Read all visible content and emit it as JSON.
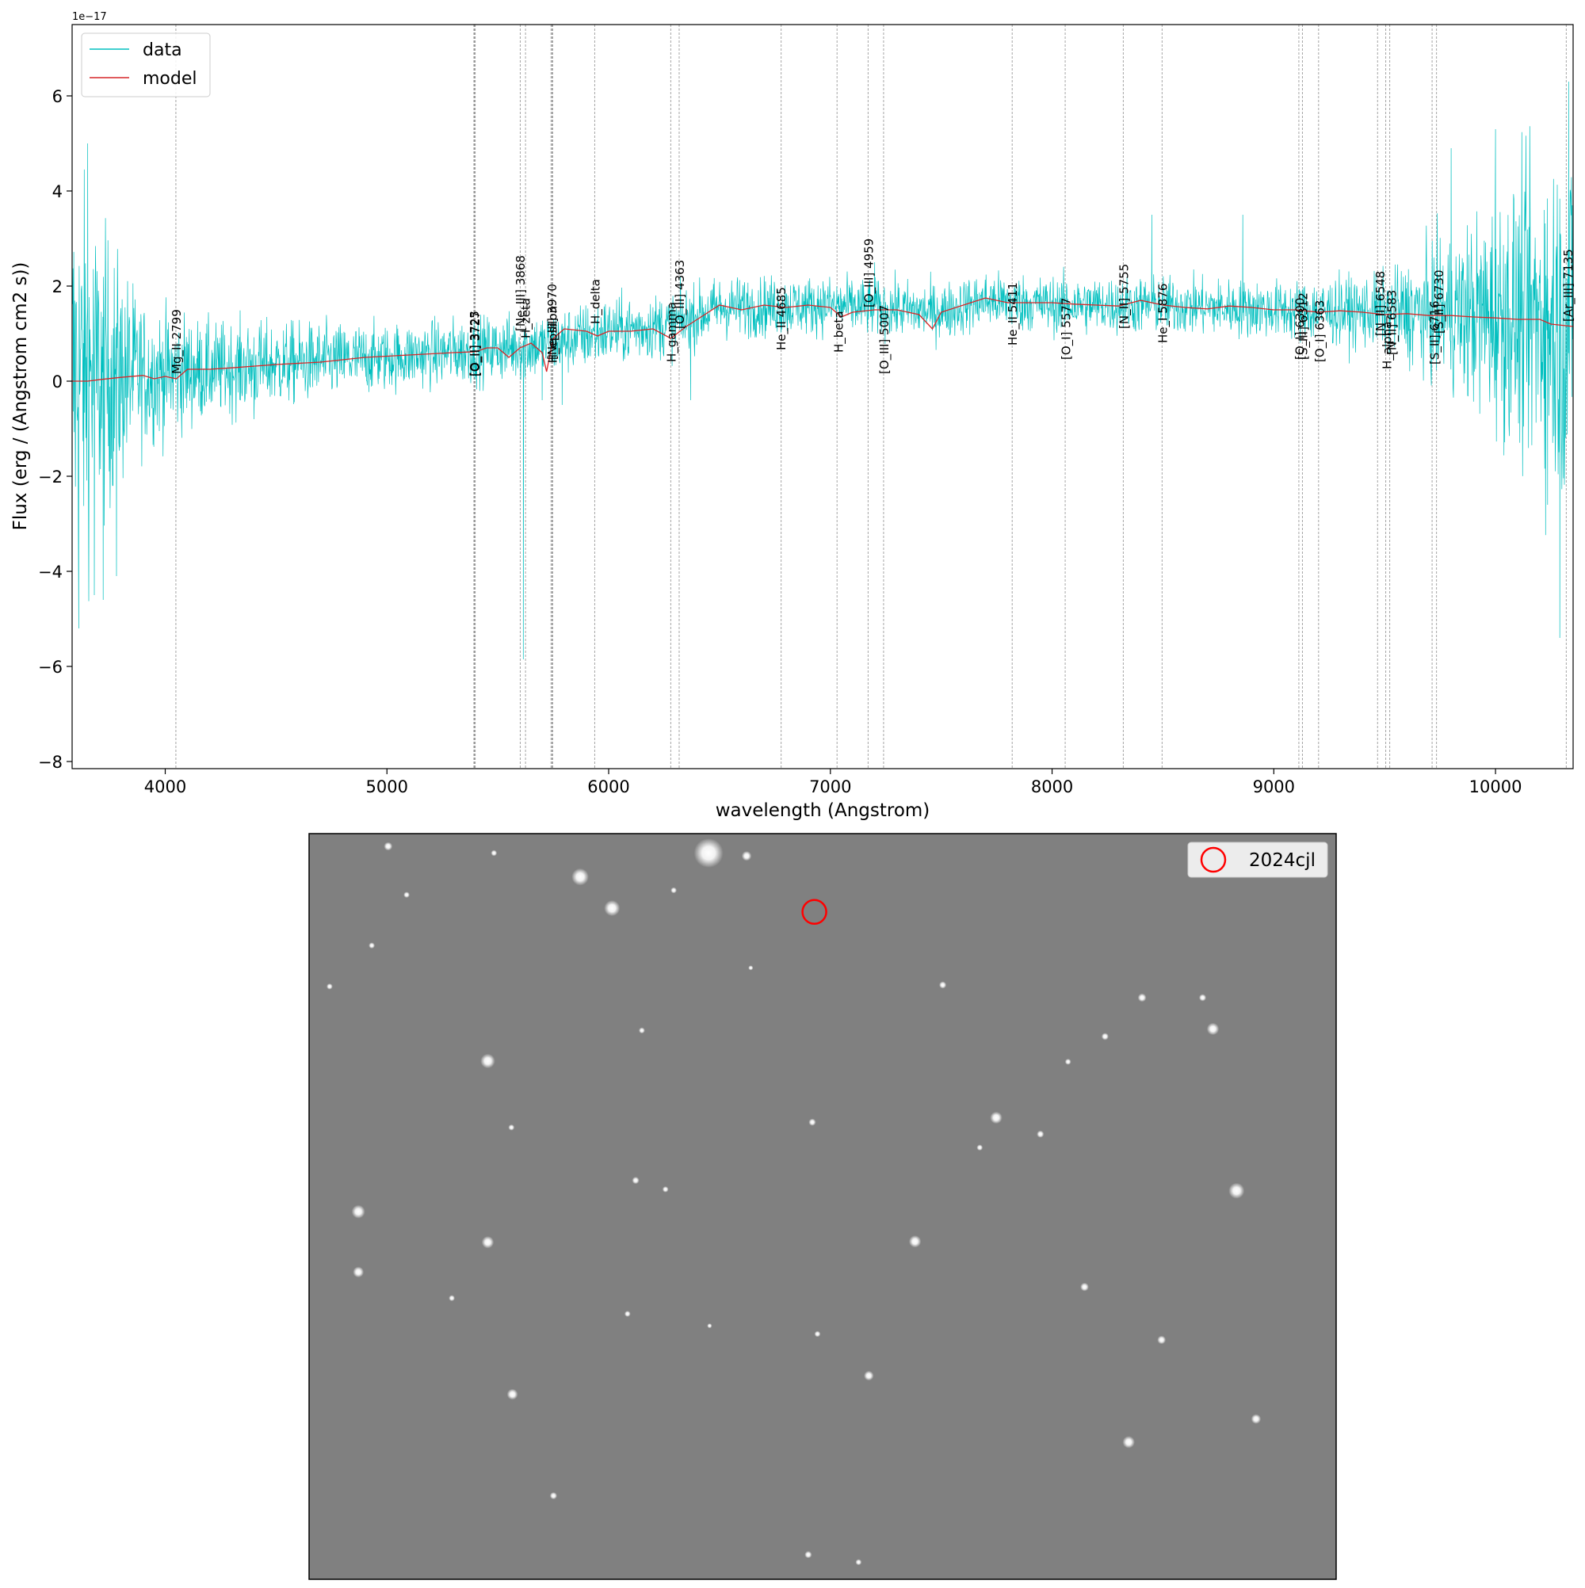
{
  "chart_data": [
    {
      "type": "line",
      "title": "",
      "xlabel": "wavelength (Angstrom)",
      "ylabel": "Flux (erg / (Angstrom cm2 s))",
      "y_multiplier": "1e−17",
      "xlim": [
        3580,
        10350
      ],
      "ylim": [
        -8.15,
        7.5
      ],
      "x_ticks": [
        4000,
        5000,
        6000,
        7000,
        8000,
        9000,
        10000
      ],
      "y_ticks": [
        -8,
        -6,
        -4,
        -2,
        0,
        2,
        4,
        6
      ],
      "y_tick_labels": [
        "−8",
        "−6",
        "−4",
        "−2",
        "0",
        "2",
        "4",
        "6"
      ],
      "grid": false,
      "legend": {
        "placement": "top-left",
        "entries": [
          "data",
          "model"
        ]
      },
      "series": [
        {
          "name": "data",
          "color": "#00bfbf",
          "style": "noisy",
          "baseline": [
            [
              3580,
              0.1
            ],
            [
              4000,
              0.15
            ],
            [
              4500,
              0.35
            ],
            [
              5000,
              0.5
            ],
            [
              5400,
              0.65
            ],
            [
              5700,
              0.75
            ],
            [
              6000,
              1.05
            ],
            [
              6300,
              1.2
            ],
            [
              6500,
              1.55
            ],
            [
              7000,
              1.6
            ],
            [
              7500,
              1.45
            ],
            [
              7700,
              1.7
            ],
            [
              8000,
              1.6
            ],
            [
              8500,
              1.6
            ],
            [
              9000,
              1.5
            ],
            [
              9500,
              1.45
            ],
            [
              10000,
              1.4
            ],
            [
              10350,
              1.2
            ]
          ],
          "noise": [
            [
              3580,
              2.2
            ],
            [
              3700,
              1.6
            ],
            [
              3900,
              0.75
            ],
            [
              4200,
              0.5
            ],
            [
              5000,
              0.35
            ],
            [
              6000,
              0.35
            ],
            [
              7000,
              0.3
            ],
            [
              8000,
              0.3
            ],
            [
              9000,
              0.3
            ],
            [
              9500,
              0.4
            ],
            [
              9800,
              0.8
            ],
            [
              10000,
              1.2
            ],
            [
              10350,
              2.0
            ]
          ],
          "spikes": [
            [
              3580,
              6.7
            ],
            [
              3610,
              -5.2
            ],
            [
              3650,
              5.0
            ],
            [
              3680,
              -4.5
            ],
            [
              3720,
              -4.6
            ],
            [
              3780,
              -4.1
            ],
            [
              4400,
              -0.8
            ],
            [
              5615,
              -5.85
            ],
            [
              5700,
              -0.4
            ],
            [
              5790,
              -0.5
            ],
            [
              6370,
              -0.4
            ],
            [
              7200,
              2.5
            ],
            [
              8450,
              3.5
            ],
            [
              8860,
              3.5
            ],
            [
              9800,
              4.9
            ],
            [
              10000,
              5.3
            ],
            [
              10220,
              3.6
            ],
            [
              10235,
              -2.6
            ],
            [
              10290,
              -5.4
            ],
            [
              10330,
              6.3
            ]
          ]
        },
        {
          "name": "model",
          "color": "#d62728",
          "points": [
            [
              3580,
              0.0
            ],
            [
              3650,
              0.0
            ],
            [
              3700,
              0.03
            ],
            [
              3800,
              0.08
            ],
            [
              3900,
              0.12
            ],
            [
              3950,
              0.05
            ],
            [
              4000,
              0.1
            ],
            [
              4050,
              0.05
            ],
            [
              4100,
              0.25
            ],
            [
              4200,
              0.25
            ],
            [
              4300,
              0.28
            ],
            [
              4500,
              0.35
            ],
            [
              4700,
              0.4
            ],
            [
              4900,
              0.5
            ],
            [
              5100,
              0.55
            ],
            [
              5300,
              0.6
            ],
            [
              5400,
              0.62
            ],
            [
              5450,
              0.7
            ],
            [
              5500,
              0.7
            ],
            [
              5550,
              0.5
            ],
            [
              5600,
              0.7
            ],
            [
              5650,
              0.8
            ],
            [
              5700,
              0.6
            ],
            [
              5720,
              0.2
            ],
            [
              5750,
              0.9
            ],
            [
              5800,
              1.1
            ],
            [
              5900,
              1.05
            ],
            [
              5950,
              0.95
            ],
            [
              6000,
              1.05
            ],
            [
              6100,
              1.05
            ],
            [
              6200,
              1.1
            ],
            [
              6280,
              0.9
            ],
            [
              6350,
              1.15
            ],
            [
              6400,
              1.3
            ],
            [
              6500,
              1.6
            ],
            [
              6600,
              1.5
            ],
            [
              6700,
              1.6
            ],
            [
              6800,
              1.55
            ],
            [
              6900,
              1.6
            ],
            [
              7000,
              1.55
            ],
            [
              7050,
              1.35
            ],
            [
              7100,
              1.45
            ],
            [
              7200,
              1.5
            ],
            [
              7300,
              1.5
            ],
            [
              7400,
              1.4
            ],
            [
              7460,
              1.1
            ],
            [
              7500,
              1.45
            ],
            [
              7600,
              1.6
            ],
            [
              7700,
              1.75
            ],
            [
              7800,
              1.65
            ],
            [
              7900,
              1.65
            ],
            [
              8000,
              1.65
            ],
            [
              8100,
              1.62
            ],
            [
              8200,
              1.6
            ],
            [
              8300,
              1.58
            ],
            [
              8400,
              1.7
            ],
            [
              8500,
              1.6
            ],
            [
              8600,
              1.55
            ],
            [
              8700,
              1.52
            ],
            [
              8800,
              1.58
            ],
            [
              8900,
              1.55
            ],
            [
              9000,
              1.5
            ],
            [
              9100,
              1.5
            ],
            [
              9200,
              1.45
            ],
            [
              9300,
              1.48
            ],
            [
              9400,
              1.45
            ],
            [
              9500,
              1.4
            ],
            [
              9600,
              1.42
            ],
            [
              9700,
              1.38
            ],
            [
              9800,
              1.38
            ],
            [
              9900,
              1.35
            ],
            [
              10000,
              1.33
            ],
            [
              10100,
              1.3
            ],
            [
              10200,
              1.3
            ],
            [
              10250,
              1.2
            ],
            [
              10350,
              1.15
            ]
          ]
        }
      ],
      "annotations": [
        {
          "label": "Mg_II 2799",
          "x": 4048,
          "y": 0.15
        },
        {
          "label": "[O_II] 3725",
          "x": 5393,
          "y": 0.1
        },
        {
          "label": "[O_II] 3727",
          "x": 5396,
          "y": 0.1
        },
        {
          "label": "[Ne_III] 3868",
          "x": 5600,
          "y": 1.05
        },
        {
          "label": "H_zeta",
          "x": 5623,
          "y": 0.9
        },
        {
          "label": "[Ne_III] 3970",
          "x": 5743,
          "y": 0.45
        },
        {
          "label": "H_epsilon",
          "x": 5745,
          "y": 0.38
        },
        {
          "label": "H_delta",
          "x": 5937,
          "y": 1.2
        },
        {
          "label": "H_gamma",
          "x": 6281,
          "y": 0.4
        },
        {
          "label": "[O_III] 4363",
          "x": 6318,
          "y": 1.1
        },
        {
          "label": "He_II 4685",
          "x": 6775,
          "y": 0.65
        },
        {
          "label": "H_beta",
          "x": 7035,
          "y": 0.6
        },
        {
          "label": "[O_III] 4959",
          "x": 7171,
          "y": 1.55
        },
        {
          "label": "[O_III] 5007",
          "x": 7240,
          "y": 0.15
        },
        {
          "label": "He_II 5411",
          "x": 7820,
          "y": 0.75
        },
        {
          "label": "[O_I] 5577",
          "x": 8060,
          "y": 0.45
        },
        {
          "label": "[N_II] 5755",
          "x": 8322,
          "y": 1.1
        },
        {
          "label": "He_I 5876",
          "x": 8496,
          "y": 0.8
        },
        {
          "label": "[O_I] 6300",
          "x": 9115,
          "y": 0.45
        },
        {
          "label": "[S_III] 6312",
          "x": 9130,
          "y": 0.45
        },
        {
          "label": "[O_I] 6363",
          "x": 9205,
          "y": 0.4
        },
        {
          "label": "[N_II] 6548",
          "x": 9478,
          "y": 0.95
        },
        {
          "label": "H_alpha",
          "x": 9508,
          "y": 0.25
        },
        {
          "label": "[N_II] 6583",
          "x": 9530,
          "y": 0.55
        },
        {
          "label": "[S_II] 6716",
          "x": 9723,
          "y": 0.35
        },
        {
          "label": "[S_II] 6730",
          "x": 9742,
          "y": 1.0
        },
        {
          "label": "[Ar_III] 7135",
          "x": 10325,
          "y": 1.25
        }
      ],
      "line_markers": [
        4048,
        5392,
        5394,
        5396,
        5398,
        5601,
        5625,
        5740,
        5744,
        5748,
        5937,
        6280,
        6318,
        6778,
        7030,
        7170,
        7240,
        7820,
        8059,
        8321,
        8496,
        9113,
        9129,
        9202,
        9468,
        9505,
        9523,
        9714,
        9734,
        10319
      ]
    },
    {
      "type": "image",
      "legend": {
        "placement": "top-right",
        "entries": [
          "2024cjl"
        ]
      },
      "marker": {
        "label": "2024cjl",
        "color": "#ff0000",
        "x_frac": 0.492,
        "y_frac": 0.105
      },
      "background_color": "#808080",
      "stars": [
        [
          0.077,
          0.017,
          0.7
        ],
        [
          0.264,
          0.058,
          1.4
        ],
        [
          0.295,
          0.1,
          1.3
        ],
        [
          0.389,
          0.026,
          2.4
        ],
        [
          0.426,
          0.03,
          0.8
        ],
        [
          0.355,
          0.076,
          0.5
        ],
        [
          0.617,
          0.203,
          0.6
        ],
        [
          0.811,
          0.22,
          0.7
        ],
        [
          0.87,
          0.22,
          0.6
        ],
        [
          0.88,
          0.262,
          1.0
        ],
        [
          0.775,
          0.272,
          0.6
        ],
        [
          0.324,
          0.264,
          0.5
        ],
        [
          0.174,
          0.305,
          1.2
        ],
        [
          0.061,
          0.15,
          0.5
        ],
        [
          0.49,
          0.387,
          0.6
        ],
        [
          0.712,
          0.403,
          0.6
        ],
        [
          0.669,
          0.381,
          1.0
        ],
        [
          0.653,
          0.421,
          0.5
        ],
        [
          0.197,
          0.394,
          0.5
        ],
        [
          0.318,
          0.465,
          0.6
        ],
        [
          0.347,
          0.477,
          0.5
        ],
        [
          0.903,
          0.479,
          1.3
        ],
        [
          0.048,
          0.507,
          1.1
        ],
        [
          0.174,
          0.548,
          1.0
        ],
        [
          0.59,
          0.547,
          1.0
        ],
        [
          0.048,
          0.588,
          0.9
        ],
        [
          0.755,
          0.608,
          0.7
        ],
        [
          0.31,
          0.644,
          0.5
        ],
        [
          0.139,
          0.623,
          0.5
        ],
        [
          0.495,
          0.671,
          0.5
        ],
        [
          0.83,
          0.679,
          0.7
        ],
        [
          0.545,
          0.727,
          0.8
        ],
        [
          0.198,
          0.752,
          0.9
        ],
        [
          0.798,
          0.816,
          1.0
        ],
        [
          0.922,
          0.785,
          0.8
        ],
        [
          0.238,
          0.888,
          0.6
        ],
        [
          0.486,
          0.967,
          0.6
        ],
        [
          0.535,
          0.977,
          0.5
        ],
        [
          0.18,
          0.026,
          0.5
        ],
        [
          0.095,
          0.082,
          0.5
        ],
        [
          0.02,
          0.205,
          0.5
        ],
        [
          0.43,
          0.18,
          0.4
        ],
        [
          0.739,
          0.306,
          0.5
        ],
        [
          0.39,
          0.66,
          0.4
        ]
      ]
    }
  ]
}
